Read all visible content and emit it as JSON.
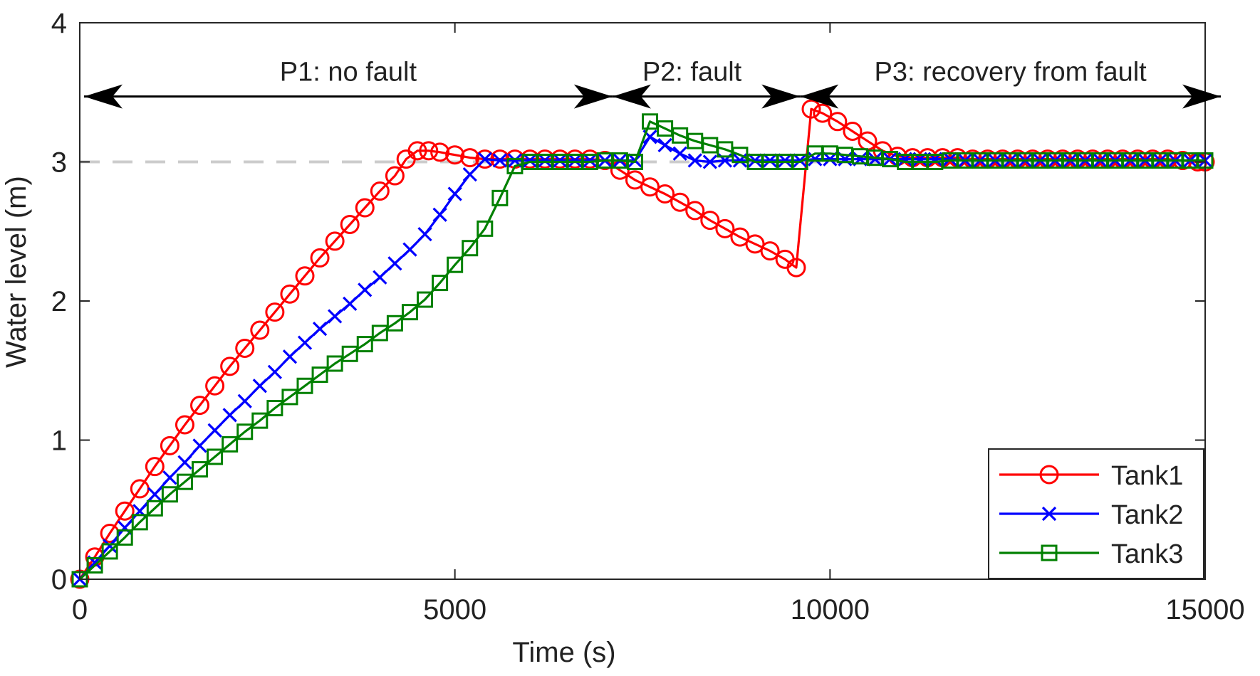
{
  "chart_data": {
    "type": "line",
    "title": "",
    "xlabel": "Time (s)",
    "ylabel": "Water level (m)",
    "xlim": [
      0,
      15000
    ],
    "ylim": [
      0,
      4
    ],
    "xticks": [
      0,
      5000,
      10000,
      15000
    ],
    "yticks": [
      0,
      1,
      2,
      3,
      4
    ],
    "xtick_labels": [
      "0",
      "5000",
      "10000",
      "15000"
    ],
    "ytick_labels": [
      "0",
      "1",
      "2",
      "3",
      "4"
    ],
    "grid": false,
    "legend": {
      "position": "bottom-right",
      "entries": [
        "Tank1",
        "Tank2",
        "Tank3"
      ]
    },
    "reference_line": {
      "y": 3,
      "style": "dashed",
      "color": "#cccccc"
    },
    "phases": [
      {
        "label": "P1: no fault",
        "start": 0,
        "end": 7100
      },
      {
        "label": "P2: fault",
        "start": 7100,
        "end": 9600
      },
      {
        "label": "P3: recovery from fault",
        "start": 9600,
        "end": 15000
      }
    ],
    "arrow_y": 3.47,
    "series": [
      {
        "name": "Tank1",
        "color": "#ff0000",
        "marker": "circle",
        "points": [
          [
            0,
            0
          ],
          [
            200,
            0.16
          ],
          [
            400,
            0.33
          ],
          [
            600,
            0.49
          ],
          [
            800,
            0.65
          ],
          [
            1000,
            0.81
          ],
          [
            1200,
            0.96
          ],
          [
            1400,
            1.11
          ],
          [
            1600,
            1.25
          ],
          [
            1800,
            1.39
          ],
          [
            2000,
            1.53
          ],
          [
            2200,
            1.66
          ],
          [
            2400,
            1.79
          ],
          [
            2600,
            1.92
          ],
          [
            2800,
            2.05
          ],
          [
            3000,
            2.18
          ],
          [
            3200,
            2.31
          ],
          [
            3400,
            2.43
          ],
          [
            3600,
            2.55
          ],
          [
            3800,
            2.67
          ],
          [
            4000,
            2.79
          ],
          [
            4200,
            2.9
          ],
          [
            4350,
            3.02
          ],
          [
            4500,
            3.08
          ],
          [
            4650,
            3.08
          ],
          [
            4800,
            3.07
          ],
          [
            5000,
            3.05
          ],
          [
            5200,
            3.03
          ],
          [
            5400,
            3.02
          ],
          [
            5600,
            3.02
          ],
          [
            5800,
            3.02
          ],
          [
            6000,
            3.02
          ],
          [
            6200,
            3.02
          ],
          [
            6400,
            3.02
          ],
          [
            6600,
            3.02
          ],
          [
            6800,
            3.02
          ],
          [
            7000,
            3.01
          ],
          [
            7200,
            2.94
          ],
          [
            7400,
            2.87
          ],
          [
            7600,
            2.82
          ],
          [
            7800,
            2.77
          ],
          [
            8000,
            2.71
          ],
          [
            8200,
            2.65
          ],
          [
            8400,
            2.58
          ],
          [
            8600,
            2.52
          ],
          [
            8800,
            2.46
          ],
          [
            9000,
            2.41
          ],
          [
            9200,
            2.36
          ],
          [
            9400,
            2.3
          ],
          [
            9550,
            2.24
          ],
          [
            9750,
            3.38
          ],
          [
            9900,
            3.35
          ],
          [
            10100,
            3.29
          ],
          [
            10300,
            3.22
          ],
          [
            10500,
            3.15
          ],
          [
            10700,
            3.08
          ],
          [
            10900,
            3.04
          ],
          [
            11100,
            3.03
          ],
          [
            11300,
            3.03
          ],
          [
            11500,
            3.03
          ],
          [
            11700,
            3.03
          ],
          [
            11900,
            3.02
          ],
          [
            12100,
            3.02
          ],
          [
            12300,
            3.02
          ],
          [
            12500,
            3.02
          ],
          [
            12700,
            3.02
          ],
          [
            12900,
            3.02
          ],
          [
            13100,
            3.02
          ],
          [
            13300,
            3.02
          ],
          [
            13500,
            3.02
          ],
          [
            13700,
            3.02
          ],
          [
            13900,
            3.02
          ],
          [
            14100,
            3.02
          ],
          [
            14300,
            3.02
          ],
          [
            14500,
            3.02
          ],
          [
            14700,
            3.01
          ],
          [
            14900,
            3.0
          ],
          [
            15000,
            3.0
          ]
        ]
      },
      {
        "name": "Tank2",
        "color": "#0000ff",
        "marker": "x",
        "points": [
          [
            0,
            0
          ],
          [
            200,
            0.12
          ],
          [
            400,
            0.24
          ],
          [
            600,
            0.37
          ],
          [
            800,
            0.49
          ],
          [
            1000,
            0.61
          ],
          [
            1200,
            0.73
          ],
          [
            1400,
            0.84
          ],
          [
            1600,
            0.96
          ],
          [
            1800,
            1.07
          ],
          [
            2000,
            1.18
          ],
          [
            2200,
            1.28
          ],
          [
            2400,
            1.39
          ],
          [
            2600,
            1.49
          ],
          [
            2800,
            1.6
          ],
          [
            3000,
            1.7
          ],
          [
            3200,
            1.8
          ],
          [
            3400,
            1.89
          ],
          [
            3600,
            1.98
          ],
          [
            3800,
            2.08
          ],
          [
            4000,
            2.17
          ],
          [
            4200,
            2.27
          ],
          [
            4400,
            2.37
          ],
          [
            4600,
            2.48
          ],
          [
            4800,
            2.62
          ],
          [
            5000,
            2.77
          ],
          [
            5200,
            2.91
          ],
          [
            5400,
            3.02
          ],
          [
            5600,
            3.01
          ],
          [
            5800,
            3.01
          ],
          [
            6000,
            3.01
          ],
          [
            6200,
            3.01
          ],
          [
            6400,
            3.01
          ],
          [
            6600,
            3.01
          ],
          [
            6800,
            3.01
          ],
          [
            7000,
            3.01
          ],
          [
            7200,
            3.01
          ],
          [
            7400,
            3.01
          ],
          [
            7600,
            3.18
          ],
          [
            7800,
            3.12
          ],
          [
            8000,
            3.06
          ],
          [
            8200,
            3.01
          ],
          [
            8400,
            3.0
          ],
          [
            8600,
            3.01
          ],
          [
            8800,
            3.01
          ],
          [
            9000,
            3.01
          ],
          [
            9200,
            3.01
          ],
          [
            9400,
            3.01
          ],
          [
            9600,
            3.01
          ],
          [
            9800,
            3.02
          ],
          [
            10000,
            3.02
          ],
          [
            10200,
            3.02
          ],
          [
            10400,
            3.02
          ],
          [
            10600,
            3.02
          ],
          [
            10800,
            3.02
          ],
          [
            11000,
            3.02
          ],
          [
            11200,
            3.02
          ],
          [
            11400,
            3.02
          ],
          [
            11600,
            3.02
          ],
          [
            11800,
            3.01
          ],
          [
            12000,
            3.01
          ],
          [
            12200,
            3.01
          ],
          [
            12400,
            3.01
          ],
          [
            12600,
            3.01
          ],
          [
            12800,
            3.01
          ],
          [
            13000,
            3.01
          ],
          [
            13200,
            3.01
          ],
          [
            13400,
            3.01
          ],
          [
            13600,
            3.01
          ],
          [
            13800,
            3.01
          ],
          [
            14000,
            3.01
          ],
          [
            14200,
            3.01
          ],
          [
            14400,
            3.01
          ],
          [
            14600,
            3.01
          ],
          [
            14800,
            3.01
          ],
          [
            15000,
            3.01
          ]
        ]
      },
      {
        "name": "Tank3",
        "color": "#008000",
        "marker": "square",
        "points": [
          [
            0,
            0
          ],
          [
            200,
            0.1
          ],
          [
            400,
            0.2
          ],
          [
            600,
            0.3
          ],
          [
            800,
            0.41
          ],
          [
            1000,
            0.51
          ],
          [
            1200,
            0.61
          ],
          [
            1400,
            0.7
          ],
          [
            1600,
            0.79
          ],
          [
            1800,
            0.88
          ],
          [
            2000,
            0.97
          ],
          [
            2200,
            1.06
          ],
          [
            2400,
            1.14
          ],
          [
            2600,
            1.23
          ],
          [
            2800,
            1.31
          ],
          [
            3000,
            1.39
          ],
          [
            3200,
            1.47
          ],
          [
            3400,
            1.55
          ],
          [
            3600,
            1.62
          ],
          [
            3800,
            1.69
          ],
          [
            4000,
            1.77
          ],
          [
            4200,
            1.84
          ],
          [
            4400,
            1.92
          ],
          [
            4600,
            2.01
          ],
          [
            4800,
            2.13
          ],
          [
            5000,
            2.26
          ],
          [
            5200,
            2.38
          ],
          [
            5400,
            2.52
          ],
          [
            5600,
            2.74
          ],
          [
            5800,
            2.97
          ],
          [
            6000,
            3.0
          ],
          [
            6200,
            3.0
          ],
          [
            6400,
            3.0
          ],
          [
            6600,
            3.0
          ],
          [
            6800,
            3.0
          ],
          [
            7000,
            3.01
          ],
          [
            7200,
            3.01
          ],
          [
            7400,
            3.0
          ],
          [
            7600,
            3.29
          ],
          [
            7800,
            3.24
          ],
          [
            8000,
            3.19
          ],
          [
            8200,
            3.15
          ],
          [
            8400,
            3.12
          ],
          [
            8600,
            3.09
          ],
          [
            8800,
            3.05
          ],
          [
            9000,
            3.0
          ],
          [
            9200,
            3.0
          ],
          [
            9400,
            3.0
          ],
          [
            9600,
            3.0
          ],
          [
            9800,
            3.06
          ],
          [
            10000,
            3.06
          ],
          [
            10200,
            3.05
          ],
          [
            10400,
            3.04
          ],
          [
            10600,
            3.03
          ],
          [
            10800,
            3.02
          ],
          [
            11000,
            3.0
          ],
          [
            11200,
            3.0
          ],
          [
            11400,
            3.0
          ],
          [
            11600,
            3.01
          ],
          [
            11800,
            3.01
          ],
          [
            12000,
            3.01
          ],
          [
            12200,
            3.01
          ],
          [
            12400,
            3.01
          ],
          [
            12600,
            3.01
          ],
          [
            12800,
            3.01
          ],
          [
            13000,
            3.01
          ],
          [
            13200,
            3.01
          ],
          [
            13400,
            3.01
          ],
          [
            13600,
            3.01
          ],
          [
            13800,
            3.01
          ],
          [
            14000,
            3.01
          ],
          [
            14200,
            3.01
          ],
          [
            14400,
            3.01
          ],
          [
            14600,
            3.01
          ],
          [
            14800,
            3.01
          ],
          [
            15000,
            3.01
          ]
        ]
      }
    ]
  }
}
